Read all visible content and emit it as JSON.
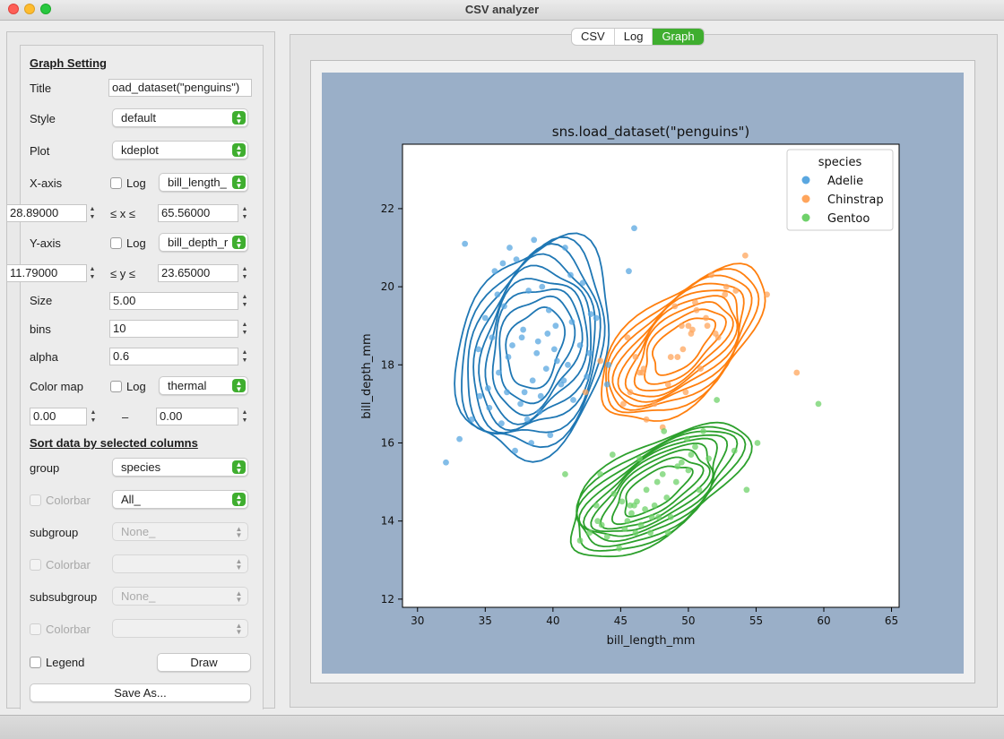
{
  "window": {
    "title": "CSV analyzer"
  },
  "tabs": [
    {
      "label": "CSV",
      "active": false
    },
    {
      "label": "Log",
      "active": false
    },
    {
      "label": "Graph",
      "active": true
    }
  ],
  "settings": {
    "section_title": "Graph Setting",
    "title_label": "Title",
    "title_value": "oad_dataset(\"penguins\")",
    "style_label": "Style",
    "style_value": "default",
    "plot_label": "Plot",
    "plot_value": "kdeplot",
    "xaxis_label": "X-axis",
    "xaxis_log_label": "Log",
    "xaxis_column": "bill_length_",
    "xmin": "28.89000",
    "xmax": "65.56000",
    "x_range_label": "≤ x ≤",
    "yaxis_label": "Y-axis",
    "yaxis_log_label": "Log",
    "yaxis_column": "bill_depth_r",
    "ymin": "11.79000",
    "ymax": "23.65000",
    "y_range_label": "≤ y ≤",
    "size_label": "Size",
    "size_value": "5.00",
    "bins_label": "bins",
    "bins_value": "10",
    "alpha_label": "alpha",
    "alpha_value": "0.6",
    "colormap_label": "Color map",
    "colormap_log_label": "Log",
    "colormap_value": "thermal",
    "cmin": "0.00",
    "cmax": "0.00",
    "crange_dash": "–"
  },
  "sort": {
    "section_title": "Sort data by selected columns",
    "group_label": "group",
    "group_value": "species",
    "colorbar1_label": "Colorbar",
    "colorbar1_value": "All_",
    "subgroup_label": "subgroup",
    "subgroup_value": "None_",
    "colorbar2_label": "Colorbar",
    "colorbar2_value": "",
    "subsubgroup_label": "subsubgroup",
    "subsubgroup_value": "None_",
    "colorbar3_label": "Colorbar",
    "colorbar3_value": "",
    "legend_label": "Legend",
    "draw_label": "Draw",
    "saveas_label": "Save As..."
  },
  "colors": {
    "accent": "#3fae2f",
    "canvas_bg": "#9aafc8",
    "adelie": "#1f77b4",
    "chinstrap": "#ff7f0e",
    "gentoo": "#2ca02c"
  },
  "chart_data": {
    "type": "scatter",
    "title": "sns.load_dataset(\"penguins\")",
    "xlabel": "bill_length_mm",
    "ylabel": "bill_depth_mm",
    "xlim": [
      28.89,
      65.56
    ],
    "ylim": [
      11.79,
      23.65
    ],
    "xticks": [
      30,
      35,
      40,
      45,
      50,
      55,
      60,
      65
    ],
    "yticks": [
      12,
      14,
      16,
      18,
      20,
      22
    ],
    "legend": {
      "title": "species",
      "position": "top-right"
    },
    "overlay": "kde contours",
    "series": [
      {
        "name": "Adelie",
        "color": "#5aa7e0",
        "x": [
          32.1,
          33.1,
          33.5,
          34.5,
          34.6,
          35.0,
          35.3,
          35.5,
          35.7,
          36.0,
          36.2,
          36.4,
          36.6,
          36.8,
          37.0,
          37.2,
          37.3,
          37.6,
          37.8,
          38.1,
          38.2,
          38.5,
          38.6,
          38.8,
          39.0,
          39.2,
          39.5,
          39.6,
          39.8,
          40.2,
          40.3,
          40.6,
          40.9,
          41.1,
          41.4,
          41.5,
          42.0,
          42.2,
          42.5,
          42.8,
          43.2,
          44.1,
          45.6,
          46.0,
          35.9,
          36.7,
          37.9,
          38.9,
          39.7,
          40.8,
          34.0,
          36.3,
          38.4,
          41.3,
          37.7,
          39.1,
          40.1,
          35.2,
          42.7,
          44.0
        ],
        "y": [
          15.5,
          16.1,
          21.1,
          18.4,
          17.2,
          19.2,
          16.9,
          18.7,
          20.4,
          17.8,
          16.5,
          19.5,
          17.3,
          21.0,
          18.5,
          15.8,
          20.7,
          17.0,
          18.9,
          16.6,
          19.9,
          17.6,
          21.2,
          18.3,
          16.8,
          20.0,
          17.9,
          18.8,
          16.2,
          19.0,
          18.1,
          17.5,
          21.0,
          18.0,
          19.1,
          17.1,
          18.5,
          20.1,
          17.7,
          19.3,
          19.2,
          18.0,
          20.4,
          21.5,
          19.8,
          18.2,
          17.3,
          18.6,
          19.4,
          17.6,
          16.6,
          20.6,
          16.0,
          20.3,
          18.7,
          17.2,
          18.4,
          17.4,
          18.3,
          17.5
        ]
      },
      {
        "name": "Chinstrap",
        "color": "#ffa55c",
        "x": [
          42.4,
          43.5,
          45.2,
          45.5,
          46.1,
          46.4,
          46.9,
          47.5,
          48.1,
          48.5,
          49.0,
          49.2,
          49.6,
          50.0,
          50.3,
          50.6,
          50.9,
          51.3,
          51.7,
          52.0,
          52.2,
          52.7,
          53.5,
          54.2,
          55.8,
          58.0,
          45.7,
          46.7,
          48.7,
          49.5,
          50.5,
          51.4,
          52.8,
          46.6,
          49.8,
          50.2
        ],
        "y": [
          17.3,
          18.1,
          17.0,
          18.7,
          18.2,
          17.8,
          16.6,
          17.0,
          16.4,
          17.5,
          19.5,
          18.2,
          18.4,
          19.0,
          18.9,
          19.4,
          17.9,
          19.2,
          20.3,
          18.8,
          18.7,
          19.8,
          19.9,
          20.8,
          19.8,
          17.8,
          17.3,
          17.9,
          18.2,
          19.0,
          19.6,
          19.0,
          20.0,
          17.8,
          17.3,
          18.8
        ],
        "note": "points read approximately"
      },
      {
        "name": "Gentoo",
        "color": "#6fd16a",
        "x": [
          40.9,
          42.0,
          42.7,
          43.2,
          43.3,
          43.6,
          44.0,
          44.4,
          44.9,
          45.1,
          45.3,
          45.5,
          45.8,
          46.1,
          46.2,
          46.4,
          46.5,
          46.8,
          47.2,
          47.5,
          47.8,
          48.1,
          48.4,
          48.7,
          49.1,
          49.5,
          49.9,
          50.2,
          50.5,
          51.1,
          51.5,
          52.1,
          53.4,
          54.3,
          55.1,
          59.6,
          44.5,
          45.7,
          46.9,
          47.7,
          48.2,
          49.2,
          50.0,
          50.8,
          43.5,
          46.0,
          47.3,
          48.5
        ],
        "y": [
          15.2,
          13.5,
          13.7,
          14.4,
          14.0,
          13.9,
          13.6,
          15.7,
          13.3,
          14.5,
          13.8,
          14.0,
          14.2,
          13.7,
          14.5,
          15.6,
          13.9,
          14.3,
          13.7,
          14.4,
          14.1,
          15.2,
          14.6,
          14.1,
          15.0,
          15.5,
          16.1,
          15.7,
          15.9,
          16.3,
          15.6,
          17.1,
          15.8,
          14.8,
          16.0,
          17.0,
          14.7,
          14.4,
          14.8,
          15.0,
          16.3,
          15.4,
          15.3,
          14.8,
          15.2,
          14.4,
          14.1,
          13.7
        ],
        "note": "points read approximately"
      }
    ]
  }
}
